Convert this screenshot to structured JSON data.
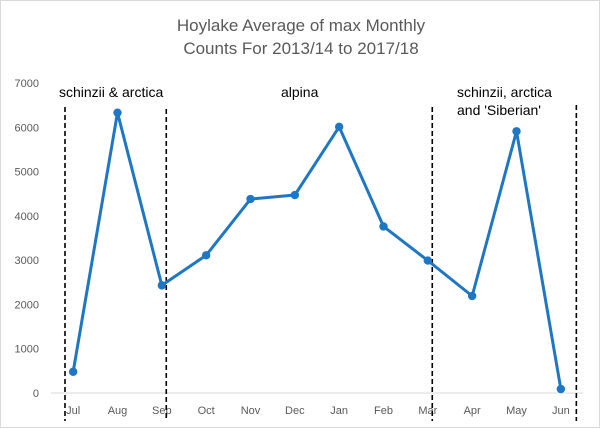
{
  "chart_data": {
    "type": "line",
    "title": [
      "Hoylake Average of max Monthly",
      "Counts For 2013/14 to 2017/18"
    ],
    "xlabel": "",
    "ylabel": "",
    "categories": [
      "Jul",
      "Aug",
      "Sep",
      "Oct",
      "Nov",
      "Dec",
      "Jan",
      "Feb",
      "Mar",
      "Apr",
      "May",
      "Jun"
    ],
    "series": [
      {
        "values": [
          480,
          6330,
          2430,
          3110,
          4380,
          4470,
          6010,
          3760,
          2990,
          2190,
          5910,
          90
        ]
      }
    ],
    "ylim": [
      0,
      7000
    ],
    "yticks": [
      "0",
      "1000",
      "2000",
      "3000",
      "4000",
      "5000",
      "6000",
      "7000"
    ],
    "grid": false,
    "legend": "none",
    "line_color": "#1f77c4",
    "annotations": [
      {
        "lines": [
          "schinzii & arctica"
        ]
      },
      {
        "lines": [
          "alpina"
        ]
      },
      {
        "lines": [
          "schinzii, arctica",
          "and  'Siberian'"
        ]
      }
    ]
  }
}
